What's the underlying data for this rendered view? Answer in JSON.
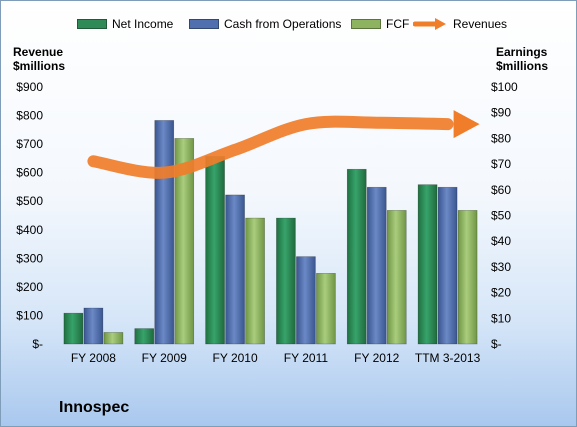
{
  "company": "Innospec",
  "axes": {
    "left_title": [
      "Revenue",
      "$millions"
    ],
    "right_title": [
      "Earnings",
      "$millions"
    ]
  },
  "legend": [
    {
      "label": "Net Income",
      "color": "#2e8b57",
      "kind": "bar"
    },
    {
      "label": "Cash from Operations",
      "color": "#4f6fae",
      "kind": "bar"
    },
    {
      "label": "FCF",
      "color": "#8db360",
      "kind": "bar"
    },
    {
      "label": "Revenues",
      "color": "#f07d2a",
      "kind": "arrow"
    }
  ],
  "chart_data": {
    "type": "bar",
    "categories": [
      "FY 2008",
      "FY 2009",
      "FY 2010",
      "FY 2011",
      "FY 2012",
      "TTM 3-2013"
    ],
    "left_axis": {
      "ylim": [
        0,
        900
      ],
      "ticks": [
        "$-",
        "$100",
        "$200",
        "$300",
        "$400",
        "$500",
        "$600",
        "$700",
        "$800",
        "$900"
      ]
    },
    "right_axis": {
      "ylim": [
        0,
        100
      ],
      "ticks": [
        "$-",
        "$10",
        "$20",
        "$30",
        "$40",
        "$50",
        "$60",
        "$70",
        "$80",
        "$90",
        "$100"
      ]
    },
    "grid": false,
    "legend_position": "top",
    "series": [
      {
        "name": "Net Income",
        "axis": "right",
        "color": "#2e8b57",
        "values": [
          12,
          6,
          73,
          49,
          68,
          62
        ]
      },
      {
        "name": "Cash from Operations",
        "axis": "right",
        "color": "#4f6fae",
        "values": [
          14,
          87,
          58,
          34,
          61,
          61
        ]
      },
      {
        "name": "FCF",
        "axis": "right",
        "color": "#8db360",
        "values": [
          4.5,
          80,
          49,
          27.5,
          52,
          52
        ]
      },
      {
        "name": "Revenues",
        "axis": "left",
        "type": "line",
        "color": "#f07d2a",
        "values": [
          640,
          600,
          680,
          770,
          775,
          770
        ]
      }
    ]
  }
}
